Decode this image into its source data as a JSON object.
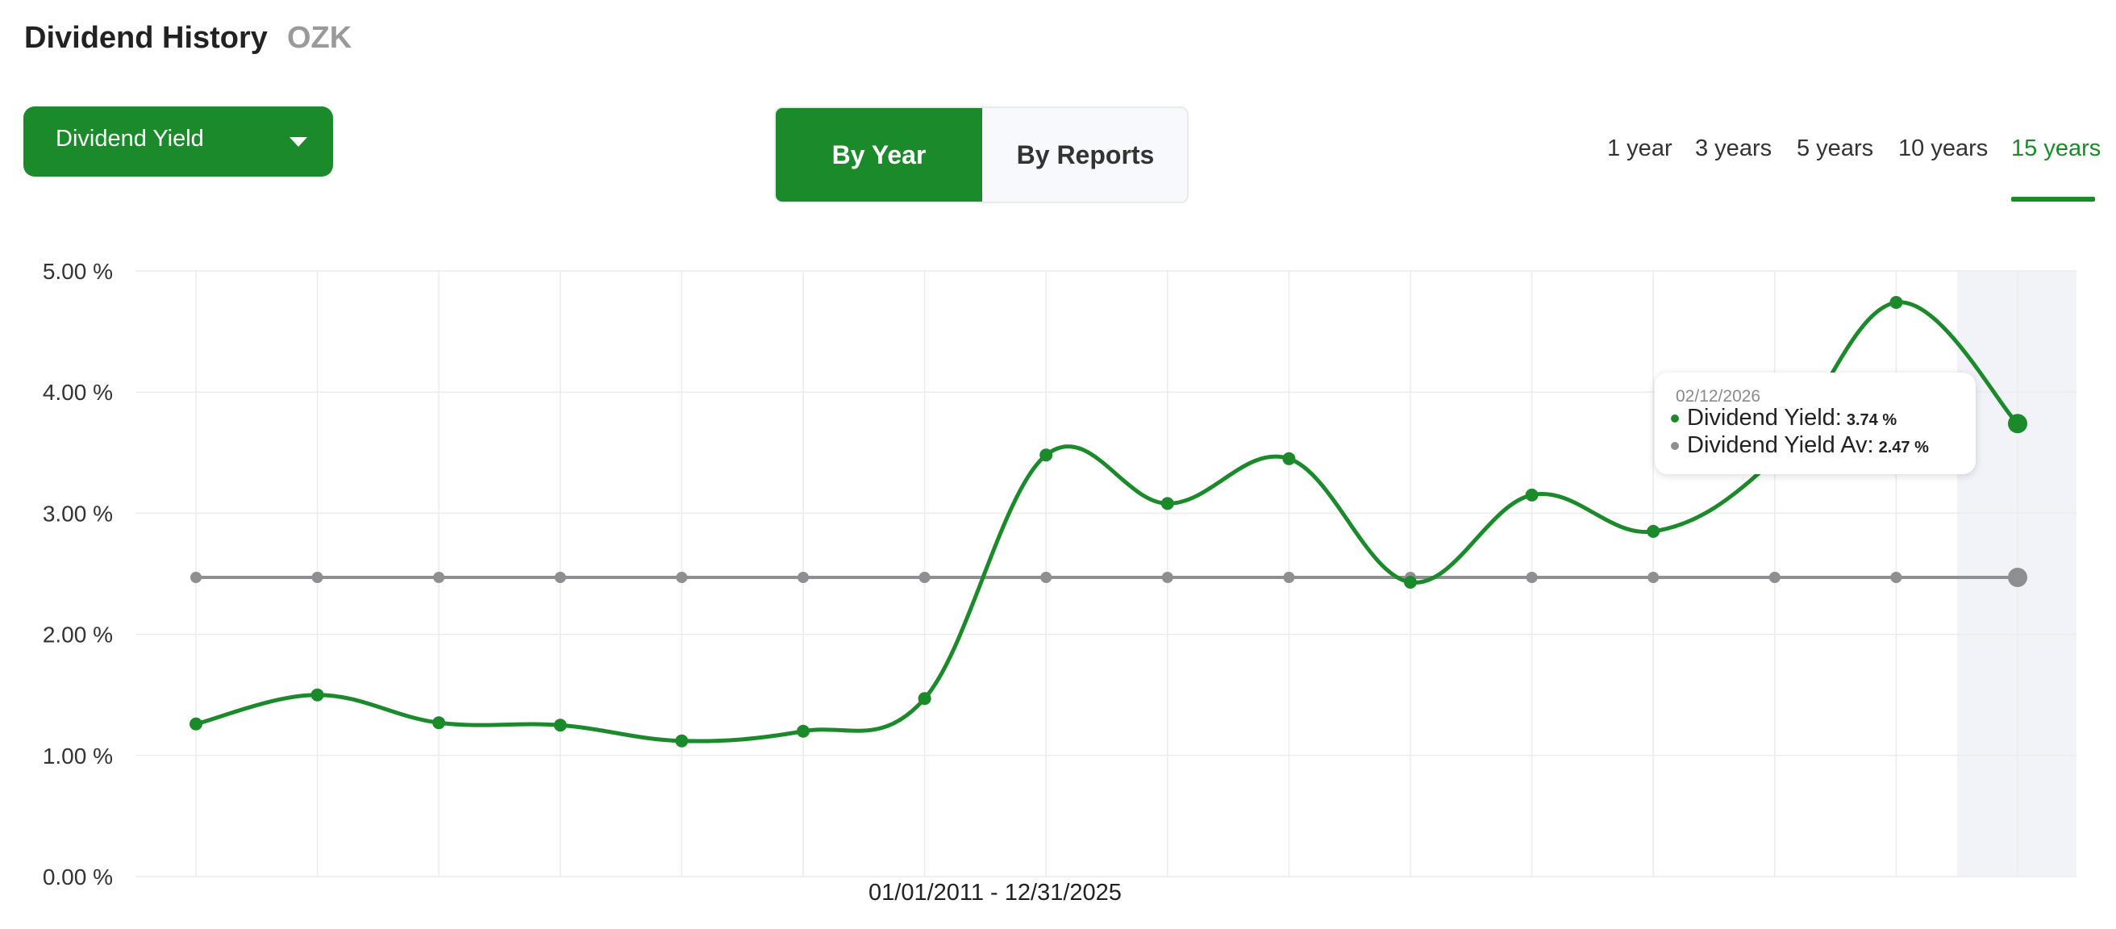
{
  "header": {
    "title": "Dividend History",
    "ticker": "OZK"
  },
  "metric_dropdown": {
    "label": "Dividend Yield",
    "icon": "caret-down-icon"
  },
  "view_toggle": {
    "by_year": "By Year",
    "by_reports": "By Reports",
    "active": "By Year"
  },
  "range_tabs": [
    {
      "label": "1 year"
    },
    {
      "label": "3 years"
    },
    {
      "label": "5 years"
    },
    {
      "label": "10 years"
    },
    {
      "label": "15 years"
    }
  ],
  "range_active": "15 years",
  "colors": {
    "accent": "#1a8a2a",
    "average": "#8e8e93",
    "highlight_band": "#f1f3f8",
    "grid": "#ececec"
  },
  "tooltip": {
    "date": "02/12/2026",
    "yield_label": "Dividend Yield:",
    "yield_value": "3.74 %",
    "avg_label": "Dividend Yield Av:",
    "avg_value": "2.47 %"
  },
  "date_range": "01/01/2011 - 12/31/2025",
  "chart_data": {
    "type": "line",
    "y_tick_labels": [
      "5.00 %",
      "4.00 %",
      "3.00 %",
      "2.00 %",
      "1.00 %",
      "0.00 %"
    ],
    "ylim": [
      0,
      5
    ],
    "ylabel": "",
    "xlabel": "01/01/2011 - 12/31/2025",
    "grid": true,
    "series": [
      {
        "name": "Dividend Yield",
        "values": [
          1.26,
          1.5,
          1.27,
          1.25,
          1.12,
          1.2,
          1.47,
          3.48,
          3.08,
          3.45,
          2.43,
          3.15,
          2.85,
          3.45,
          4.74,
          3.74
        ]
      },
      {
        "name": "Dividend Yield Av",
        "values": [
          2.47,
          2.47,
          2.47,
          2.47,
          2.47,
          2.47,
          2.47,
          2.47,
          2.47,
          2.47,
          2.47,
          2.47,
          2.47,
          2.47,
          2.47,
          2.47
        ]
      }
    ],
    "highlighted_index": 15
  }
}
